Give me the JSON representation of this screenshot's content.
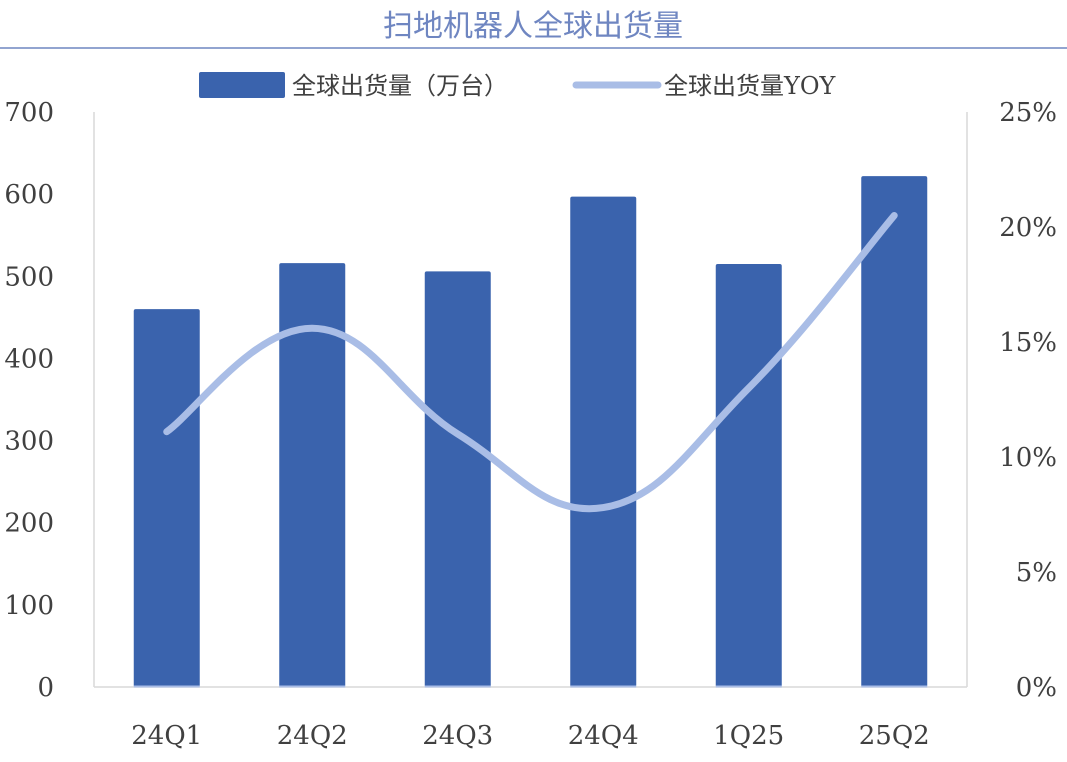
{
  "chart_data": {
    "type": "bar",
    "title": "扫地机器人全球出货量",
    "categories": [
      "24Q1",
      "24Q2",
      "24Q3",
      "24Q4",
      "1Q25",
      "25Q2"
    ],
    "series": [
      {
        "name": "全球出货量（万台）",
        "type": "bar",
        "axis": "left",
        "color": "#3A63AD",
        "values": [
          460,
          516,
          506,
          597,
          515,
          622
        ]
      },
      {
        "name": "全球出货量YOY",
        "type": "line",
        "axis": "right",
        "smooth": true,
        "color": "#A9BDE6",
        "values": [
          11.1,
          15.6,
          11.0,
          7.8,
          13.0,
          20.5
        ]
      }
    ],
    "left_axis": {
      "ylim": [
        0,
        700
      ],
      "ticks": [
        "0",
        "100",
        "200",
        "300",
        "400",
        "500",
        "600",
        "700"
      ]
    },
    "right_axis": {
      "ylim": [
        0,
        25
      ],
      "ticks": [
        "0%",
        "5%",
        "10%",
        "15%",
        "20%",
        "25%"
      ]
    },
    "legend_position": "top",
    "grid": false,
    "colors": {
      "title": "#6F86C1",
      "title_rule": "#6F86C1",
      "bar": "#3A63AD",
      "line": "#A9BDE6",
      "text": "#404040",
      "axis": "#D9D9D9"
    }
  }
}
